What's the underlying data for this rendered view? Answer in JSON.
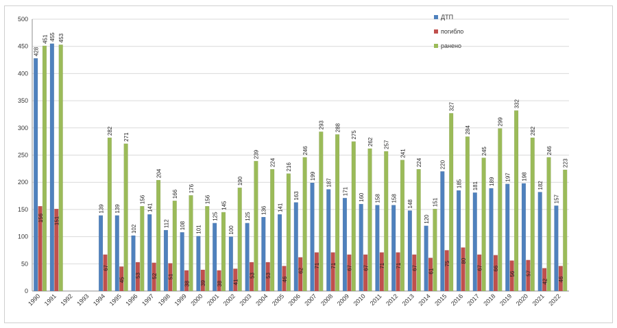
{
  "chart_data": {
    "type": "bar",
    "categories": [
      "1990",
      "1991",
      "1992",
      "1993",
      "1994",
      "1995",
      "1996",
      "1997",
      "1998",
      "1999",
      "2000",
      "2001",
      "2002",
      "2003",
      "2004",
      "2005",
      "2006",
      "2007",
      "2008",
      "2009",
      "2010",
      "2011",
      "2012",
      "2013",
      "2014",
      "2015",
      "2016",
      "2017",
      "2018",
      "2019",
      "2020",
      "2021",
      "2022"
    ],
    "series": [
      {
        "name": "ДТП",
        "color": "#4f81bd",
        "values": [
          428,
          455,
          null,
          null,
          139,
          139,
          102,
          141,
          112,
          108,
          101,
          125,
          100,
          125,
          136,
          141,
          163,
          199,
          187,
          171,
          160,
          158,
          158,
          148,
          120,
          220,
          185,
          181,
          189,
          197,
          198,
          182,
          157
        ]
      },
      {
        "name": "погибло",
        "color": "#c0504d",
        "values": [
          156,
          151,
          null,
          null,
          67,
          45,
          53,
          52,
          51,
          38,
          39,
          38,
          41,
          53,
          53,
          46,
          62,
          71,
          71,
          67,
          67,
          71,
          71,
          67,
          61,
          75,
          80,
          67,
          66,
          56,
          57,
          42,
          46
        ]
      },
      {
        "name": "ранено",
        "color": "#9bbb59",
        "values": [
          451,
          453,
          null,
          null,
          282,
          271,
          156,
          204,
          166,
          176,
          156,
          145,
          190,
          239,
          224,
          216,
          246,
          293,
          288,
          275,
          262,
          257,
          241,
          224,
          151,
          327,
          284,
          245,
          299,
          332,
          282,
          246,
          223
        ]
      }
    ],
    "yticks": [
      0,
      50,
      100,
      150,
      200,
      250,
      300,
      350,
      400,
      450,
      500
    ],
    "ylim": [
      0,
      500
    ],
    "legend_position": "top-right",
    "grid": true
  }
}
